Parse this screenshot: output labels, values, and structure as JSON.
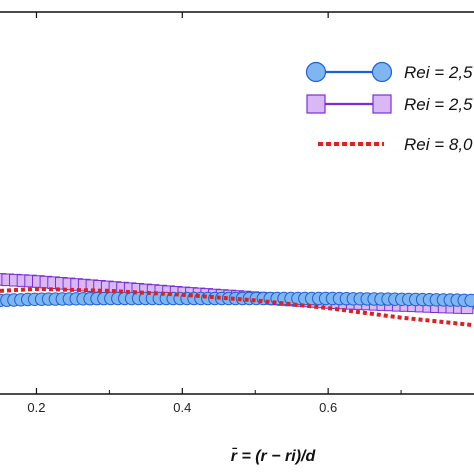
{
  "chart_data": {
    "type": "line",
    "title": "",
    "xlabel": "r̄ = (r − ri)/d",
    "ylabel": "",
    "xlim": [
      0.15,
      0.8
    ],
    "ylim": [
      0.0,
      1.0
    ],
    "x_ticks": [
      "0.2",
      "0.4",
      "0.6"
    ],
    "x_tick_values": [
      0.2,
      0.4,
      0.6
    ],
    "grid": false,
    "legend_position": "top-right",
    "series": [
      {
        "name": "Rei = 2,5",
        "style": "solid line with filled circle markers",
        "color": "#1f5fd6",
        "marker_fill": "#7fb6ef",
        "x": [
          0.15,
          0.2,
          0.3,
          0.4,
          0.5,
          0.6,
          0.7,
          0.8
        ],
        "y": [
          0.245,
          0.248,
          0.25,
          0.25,
          0.25,
          0.25,
          0.248,
          0.245
        ]
      },
      {
        "name": "Rei = 2,5",
        "style": "solid line with filled square markers",
        "color": "#7a2fd6",
        "marker_fill": "#d9b8f5",
        "x": [
          0.15,
          0.2,
          0.3,
          0.4,
          0.5,
          0.6,
          0.7,
          0.8
        ],
        "y": [
          0.3,
          0.295,
          0.28,
          0.265,
          0.252,
          0.24,
          0.232,
          0.225
        ]
      },
      {
        "name": "Rei = 8,0",
        "style": "dotted line",
        "color": "#e02020",
        "x": [
          0.15,
          0.2,
          0.3,
          0.4,
          0.5,
          0.6,
          0.7,
          0.8
        ],
        "y": [
          0.27,
          0.275,
          0.27,
          0.26,
          0.245,
          0.225,
          0.2,
          0.18
        ]
      }
    ]
  }
}
